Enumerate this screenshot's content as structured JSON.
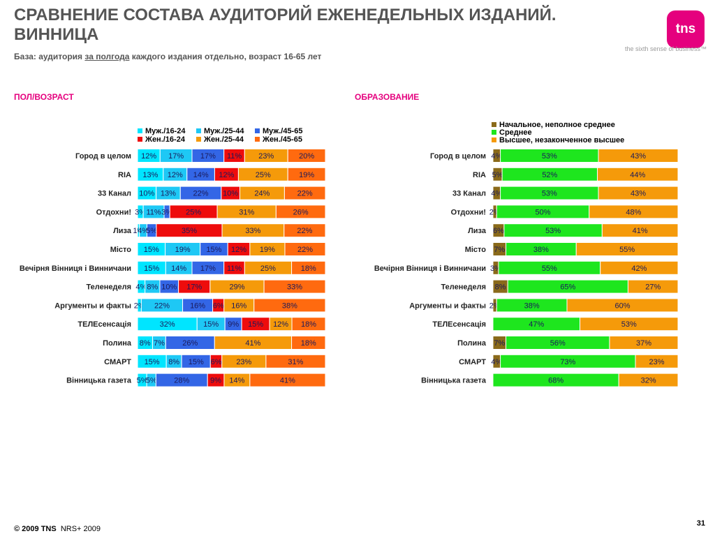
{
  "header": {
    "title_line1": "СРАВНЕНИЕ СОСТАВА АУДИТОРИЙ ЕЖЕНЕДЕЛЬНЫХ ИЗДАНИЙ.",
    "title_line2": "ВИННИЦА",
    "subtitle_before": "База: аудитория ",
    "subtitle_underlined": "за полгода",
    "subtitle_after": " каждого издания отдельно, возраст 16-65 лет"
  },
  "logo": {
    "text": "tns",
    "tagline": "the sixth sense of business™",
    "color": "#e5007e"
  },
  "footer": {
    "copyright": "© 2009 TNS",
    "source": "NRS+ 2009",
    "page_number": "31"
  },
  "colors": {
    "section_title": "#e5007e",
    "gender_age": [
      "#00e5ff",
      "#1ec8f5",
      "#3366e6",
      "#ee0c0c",
      "#f59a0a",
      "#ff6a0f"
    ],
    "education": [
      "#8a6a1a",
      "#1ee61e",
      "#f59a0a"
    ]
  },
  "chart_data": [
    {
      "type": "bar",
      "orientation": "horizontal",
      "stacked": "percent",
      "title": "ПОЛ/ВОЗРАСТ",
      "legend_position": "top",
      "categories": [
        "Город в целом",
        "RIA",
        "33 Канал",
        "Отдохни!",
        "Лиза",
        "Місто",
        "Вечірня Вінниця і Винничани",
        "Теленеделя",
        "Аргументы и факты",
        "ТЕЛЕсенсація",
        "Полина",
        "СМАРТ",
        "Вінницька газета"
      ],
      "series": [
        {
          "name": "Муж./16-24",
          "values": [
            12,
            13,
            10,
            3,
            1,
            15,
            15,
            4,
            2,
            32,
            8,
            15,
            5
          ]
        },
        {
          "name": "Муж./25-44",
          "values": [
            17,
            12,
            13,
            11,
            4,
            19,
            14,
            8,
            22,
            15,
            7,
            8,
            5
          ]
        },
        {
          "name": "Муж./45-65",
          "values": [
            17,
            14,
            22,
            3,
            5,
            15,
            17,
            10,
            16,
            9,
            26,
            15,
            28
          ]
        },
        {
          "name": "Жен./16-24",
          "values": [
            11,
            12,
            10,
            25,
            35,
            12,
            11,
            17,
            6,
            15,
            0,
            6,
            9
          ]
        },
        {
          "name": "Жен./25-44",
          "values": [
            23,
            25,
            24,
            31,
            33,
            19,
            25,
            29,
            16,
            12,
            41,
            23,
            14
          ]
        },
        {
          "name": "Жен./45-65",
          "values": [
            20,
            19,
            22,
            26,
            22,
            22,
            18,
            33,
            38,
            18,
            18,
            31,
            41
          ]
        }
      ]
    },
    {
      "type": "bar",
      "orientation": "horizontal",
      "stacked": "percent",
      "title": "ОБРАЗОВАНИЕ",
      "legend_position": "top",
      "categories": [
        "Город в целом",
        "RIA",
        "33 Канал",
        "Отдохни!",
        "Лиза",
        "Місто",
        "Вечірня Вінниця і Винничани",
        "Теленеделя",
        "Аргументы и факты",
        "ТЕЛЕсенсація",
        "Полина",
        "СМАРТ",
        "Вінницька газета"
      ],
      "series": [
        {
          "name": "Начальное, неполное среднее",
          "values": [
            4,
            5,
            4,
            2,
            6,
            7,
            3,
            8,
            2,
            0,
            7,
            4,
            0
          ]
        },
        {
          "name": "Среднее",
          "values": [
            53,
            52,
            53,
            50,
            53,
            38,
            55,
            65,
            38,
            47,
            56,
            73,
            68
          ]
        },
        {
          "name": "Высшее, незаконченное высшее",
          "values": [
            43,
            44,
            43,
            48,
            41,
            55,
            42,
            27,
            60,
            53,
            37,
            23,
            32
          ]
        }
      ]
    }
  ]
}
